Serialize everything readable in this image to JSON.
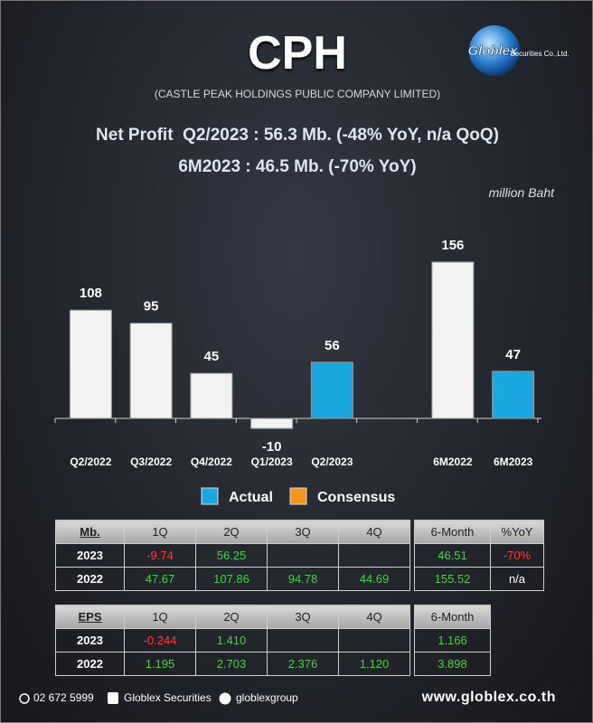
{
  "header": {
    "title": "CPH",
    "company": "(CASTLE PEAK HOLDINGS PUBLIC COMPANY LIMITED)",
    "headline": [
      "Net Profit  Q2/2023 : 56.3 Mb. (-48% YoY, n/a QoQ)",
      "6M2023 : 46.5 Mb. (-70% YoY)"
    ],
    "unit": "million Baht"
  },
  "logo": {
    "name": "Globlex",
    "subtitle": "Securities Co.,Ltd."
  },
  "chart_data": {
    "type": "bar",
    "categories": [
      "Q2/2022",
      "Q3/2022",
      "Q4/2022",
      "Q1/2023",
      "Q2/2023",
      null,
      "6M2022",
      "6M2023"
    ],
    "values": [
      108,
      95,
      45,
      -10,
      56,
      null,
      156,
      47
    ],
    "colors": [
      "#f2f2f2",
      "#f2f2f2",
      "#f2f2f2",
      "#f2f2f2",
      "#1aa7e0",
      null,
      "#f2f2f2",
      "#1aa7e0"
    ],
    "legend": [
      {
        "name": "Actual",
        "color": "#1aa7e0"
      },
      {
        "name": "Consensus",
        "color": "#f7941d"
      }
    ]
  },
  "tables": [
    {
      "header": [
        "Mb.",
        "1Q",
        "2Q",
        "3Q",
        "4Q"
      ],
      "rows": [
        [
          "2023",
          "-9.74",
          "56.25",
          null,
          null
        ],
        [
          "2022",
          "47.67",
          "107.86",
          "94.78",
          "44.69"
        ]
      ]
    },
    {
      "header": [
        "6-Month",
        "%YoY"
      ],
      "rows": [
        [
          "46.51",
          "-70%"
        ],
        [
          "155.52",
          "n/a"
        ]
      ]
    },
    {
      "header": [
        "EPS",
        "1Q",
        "2Q",
        "3Q",
        "4Q"
      ],
      "rows": [
        [
          "2023",
          "-0.244",
          "1.410",
          null,
          null
        ],
        [
          "2022",
          "1.195",
          "2.703",
          "2.376",
          "1.120"
        ]
      ]
    },
    {
      "header": [
        "6-Month"
      ],
      "rows": [
        [
          "1.166"
        ],
        [
          "3.898"
        ]
      ]
    }
  ],
  "footer": {
    "phone": "02 672 5999",
    "facebook": "Globlex Securities",
    "telegram": "globlexgroup",
    "website": "www.globlex.co.th"
  }
}
